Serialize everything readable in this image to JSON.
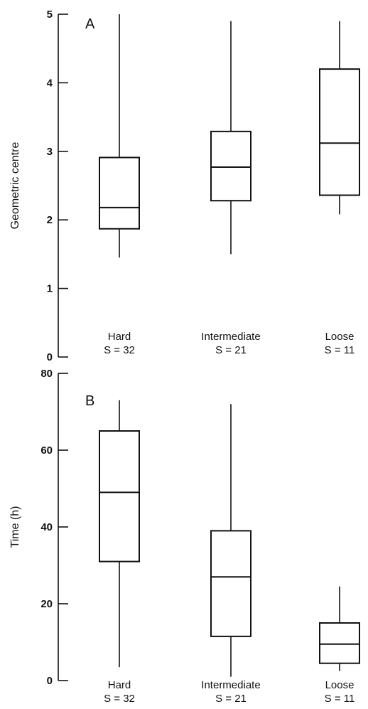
{
  "chart_data": [
    {
      "type": "box",
      "panel": "A",
      "ylabel": "Geometric centre",
      "ylim": [
        0,
        5
      ],
      "yticks": [
        "0",
        "1",
        "2",
        "3",
        "4",
        "5"
      ],
      "categories": [
        {
          "name": "Hard",
          "sub": "S = 32",
          "min": 1.45,
          "q1": 1.87,
          "median": 2.18,
          "q3": 2.91,
          "max": 5.0
        },
        {
          "name": "Intermediate",
          "sub": "S = 21",
          "min": 1.5,
          "q1": 2.28,
          "median": 2.77,
          "q3": 3.29,
          "max": 4.9
        },
        {
          "name": "Loose",
          "sub": "S = 11",
          "min": 2.08,
          "q1": 2.36,
          "median": 3.12,
          "q3": 4.2,
          "max": 4.9
        }
      ]
    },
    {
      "type": "box",
      "panel": "B",
      "ylabel": "Time (h)",
      "ylim": [
        0,
        80
      ],
      "yticks": [
        "0",
        "20",
        "40",
        "60",
        "80"
      ],
      "categories": [
        {
          "name": "Hard",
          "sub": "S = 32",
          "min": 3.5,
          "q1": 31.0,
          "median": 49.0,
          "q3": 65.0,
          "max": 73.0
        },
        {
          "name": "Intermediate",
          "sub": "S = 21",
          "min": 1.0,
          "q1": 11.5,
          "median": 27.0,
          "q3": 39.0,
          "max": 72.0
        },
        {
          "name": "Loose",
          "sub": "S = 11",
          "min": 2.5,
          "q1": 4.5,
          "median": 9.5,
          "q3": 15.0,
          "max": 24.5
        }
      ]
    }
  ]
}
